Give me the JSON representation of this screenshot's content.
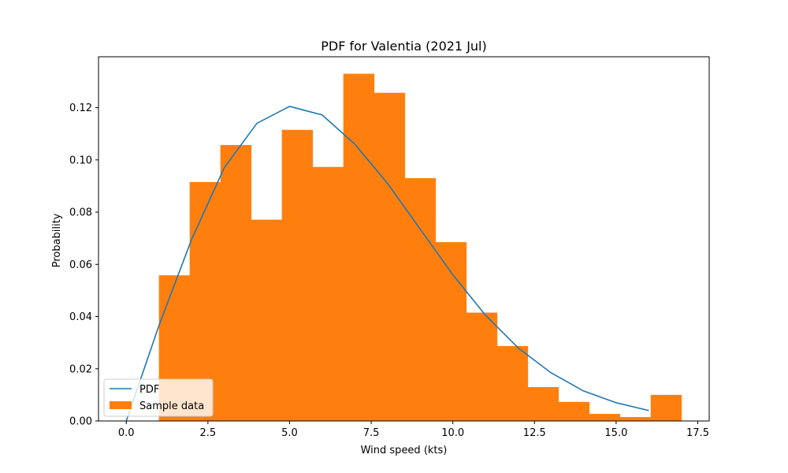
{
  "chart_data": {
    "type": "bar",
    "title": "PDF for Valentia (2021 Jul)",
    "xlabel": "Wind speed (kts)",
    "ylabel": "Probability",
    "xlim": [
      -0.85,
      17.85
    ],
    "ylim": [
      0,
      0.1395
    ],
    "grid": false,
    "legend_position": "lower left",
    "x_ticks": [
      0.0,
      2.5,
      5.0,
      7.5,
      10.0,
      12.5,
      15.0,
      17.5
    ],
    "x_tick_labels": [
      "0.0",
      "2.5",
      "5.0",
      "7.5",
      "10.0",
      "12.5",
      "15.0",
      "17.5"
    ],
    "y_ticks": [
      0.0,
      0.02,
      0.04,
      0.06,
      0.08,
      0.1,
      0.12
    ],
    "y_tick_labels": [
      "0.00",
      "0.02",
      "0.04",
      "0.06",
      "0.08",
      "0.10",
      "0.12"
    ],
    "histogram": {
      "name": "Sample data",
      "color": "#ff7f0e",
      "bin_edges": [
        1,
        1.9412,
        2.8824,
        3.8235,
        4.7647,
        5.7059,
        6.6471,
        7.5882,
        8.5294,
        9.4706,
        10.4118,
        11.3529,
        12.2941,
        13.2353,
        14.1765,
        15.1176,
        16.0588,
        17
      ],
      "values": [
        0.0558,
        0.0915,
        0.1057,
        0.0771,
        0.1115,
        0.0973,
        0.133,
        0.1257,
        0.093,
        0.0685,
        0.0415,
        0.0287,
        0.013,
        0.0073,
        0.0027,
        0.0015,
        0.01
      ]
    },
    "series": [
      {
        "name": "PDF",
        "color": "#1f77b4",
        "type": "line",
        "x": [
          0,
          1,
          2,
          3,
          4,
          5,
          6,
          7,
          8,
          9,
          10,
          11,
          12,
          13,
          14,
          15,
          16
        ],
        "y": [
          0.0,
          0.0365,
          0.0695,
          0.097,
          0.114,
          0.1205,
          0.1172,
          0.106,
          0.091,
          0.0735,
          0.056,
          0.0405,
          0.028,
          0.0185,
          0.0115,
          0.007,
          0.004
        ]
      }
    ]
  }
}
